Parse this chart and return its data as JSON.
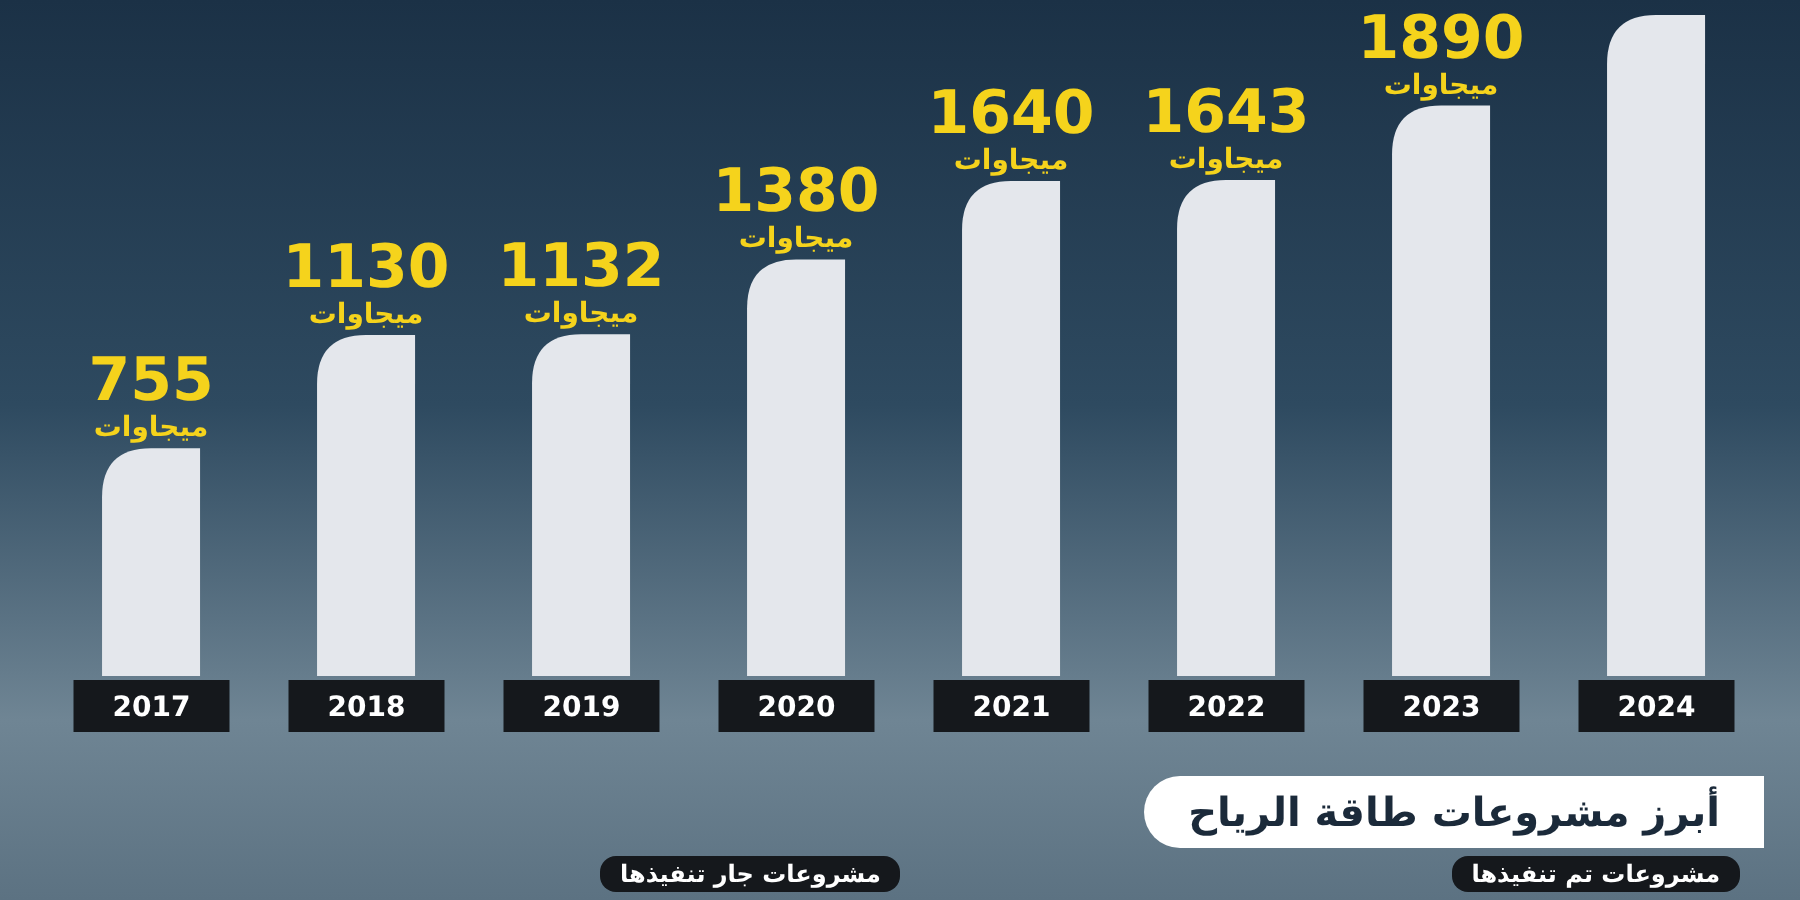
{
  "chart_data": {
    "type": "bar",
    "categories": [
      "2017",
      "2018",
      "2019",
      "2020",
      "2021",
      "2022",
      "2023",
      "2024"
    ],
    "values": [
      755,
      1130,
      1132,
      1380,
      1640,
      1643,
      1890,
      2190
    ],
    "value_labels": [
      "755\nميجاوات",
      "1130\nميجاوات",
      "1132\nميجاوات",
      "1380\nميجاوات",
      "1640\nميجاوات",
      "1643\nميجاوات",
      "1890\nميجاوات",
      null
    ],
    "color": "#e4e7ec",
    "ylim": [
      0,
      2200
    ],
    "tick_labels": "x",
    "annotations": [
      "أبرز مشروعات طاقة الرياح",
      "مشروعات تم تنفيذها",
      "مشروعات جار تنفيذها"
    ]
  }
}
